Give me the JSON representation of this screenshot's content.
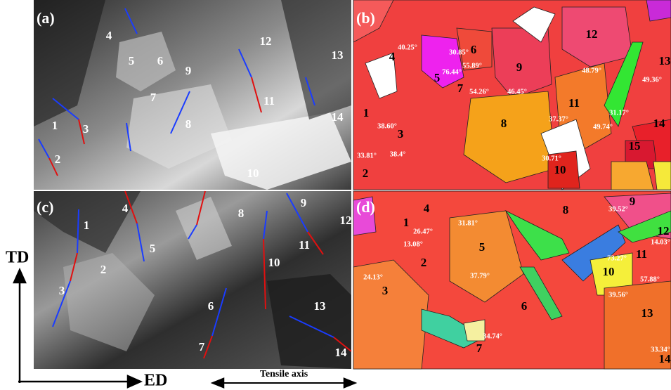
{
  "panels": [
    {
      "label": "(a)",
      "grains": [
        "4",
        "5",
        "6",
        "9",
        "12",
        "13",
        "7",
        "11",
        "1",
        "3",
        "8",
        "14",
        "2",
        "10"
      ]
    },
    {
      "label": "(b)",
      "grains": [
        "4",
        "5",
        "6",
        "9",
        "12",
        "13",
        "7",
        "11",
        "1",
        "3",
        "8",
        "14",
        "15",
        "2",
        "10"
      ],
      "angles": [
        "40.25°",
        "30.85°",
        "55.89°",
        "76.44°",
        "54.26°",
        "46.45°",
        "48.79°",
        "49.36°",
        "37.37°",
        "38.60°",
        "31.17°",
        "49.74°",
        "33.81°",
        "38.4°",
        "30.71°"
      ]
    },
    {
      "label": "(c)",
      "grains": [
        "4",
        "1",
        "8",
        "9",
        "12",
        "11",
        "5",
        "2",
        "10",
        "3",
        "6",
        "13",
        "7",
        "14"
      ]
    },
    {
      "label": "(d)",
      "grains": [
        "4",
        "8",
        "9",
        "1",
        "12",
        "11",
        "5",
        "2",
        "10",
        "3",
        "6",
        "13",
        "7",
        "14"
      ],
      "angles": [
        "39.52°",
        "26.47°",
        "31.81°",
        "13.08°",
        "14.03°",
        "73.27°",
        "24.13°",
        "37.79°",
        "57.88°",
        "39.56°",
        "34.74°",
        "33.34°"
      ]
    }
  ],
  "axes": {
    "vertical": "TD",
    "horizontal": "ED",
    "tensile": "Tensile axis"
  }
}
